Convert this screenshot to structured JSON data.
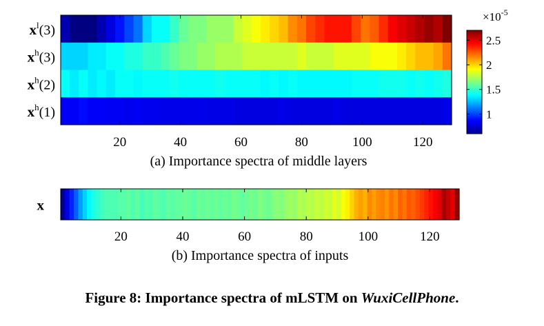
{
  "chart_data": [
    {
      "type": "heatmap",
      "subcaption": "(a)  Importance spectra of middle layers",
      "rows": [
        {
          "label_main": "x",
          "label_sup": "l",
          "label_arg": "(3)",
          "values": [
            0.7,
            0.6,
            0.55,
            0.6,
            0.7,
            0.8,
            0.9,
            1.0,
            1.1,
            1.3,
            1.4,
            1.4,
            1.5,
            1.6,
            1.65,
            1.65,
            1.7,
            1.7,
            1.7,
            1.8,
            1.85,
            1.9,
            1.95,
            2.0,
            2.05,
            2.15,
            2.2,
            2.3,
            2.35,
            2.4,
            2.4,
            2.4,
            2.3,
            2.2,
            2.25,
            2.35,
            2.45,
            2.5,
            2.55,
            2.6,
            2.65,
            2.6,
            2.7
          ]
        },
        {
          "label_main": "x",
          "label_sup": "h",
          "label_arg": "(3)",
          "values": [
            1.3,
            1.3,
            1.3,
            1.35,
            1.35,
            1.4,
            1.4,
            1.45,
            1.45,
            1.5,
            1.5,
            1.55,
            1.6,
            1.65,
            1.65,
            1.7,
            1.7,
            1.75,
            1.75,
            1.75,
            1.8,
            1.8,
            1.8,
            1.8,
            1.8,
            1.8,
            1.85,
            1.8,
            1.8,
            1.8,
            1.85,
            1.85,
            1.85,
            1.85,
            1.9,
            1.9,
            1.9,
            1.95,
            2.0,
            2.05,
            2.05,
            2.1,
            2.2
          ]
        },
        {
          "label_main": "x",
          "label_sup": "h",
          "label_arg": "(2)",
          "values": [
            1.4,
            1.35,
            1.4,
            1.35,
            1.38,
            1.35,
            1.4,
            1.4,
            1.38,
            1.4,
            1.4,
            1.4,
            1.42,
            1.4,
            1.4,
            1.4,
            1.4,
            1.42,
            1.4,
            1.4,
            1.4,
            1.4,
            1.38,
            1.4,
            1.38,
            1.4,
            1.38,
            1.38,
            1.38,
            1.38,
            1.38,
            1.38,
            1.4,
            1.4,
            1.4,
            1.42,
            1.42,
            1.42,
            1.4,
            1.42,
            1.4,
            1.42,
            1.45
          ]
        },
        {
          "label_main": "x",
          "label_sup": "h",
          "label_arg": "(1)",
          "values": [
            0.85,
            0.85,
            0.88,
            0.85,
            0.85,
            0.84,
            0.84,
            0.83,
            0.84,
            0.83,
            0.83,
            0.82,
            0.82,
            0.82,
            0.82,
            0.82,
            0.81,
            0.81,
            0.81,
            0.8,
            0.8,
            0.8,
            0.8,
            0.8,
            0.81,
            0.8,
            0.8,
            0.8,
            0.8,
            0.8,
            0.81,
            0.8,
            0.8,
            0.8,
            0.8,
            0.8,
            0.8,
            0.8,
            0.8,
            0.8,
            0.8,
            0.8,
            0.82
          ]
        }
      ],
      "x_ticks": [
        20,
        40,
        60,
        80,
        100,
        120
      ],
      "xlim": [
        0.5,
        129.5
      ],
      "colorbar": {
        "multiplier": "×10",
        "exponent": "-5",
        "ticks": [
          1,
          1.5,
          2,
          2.5
        ],
        "tick_labels": [
          "1",
          "1.5",
          "2",
          "2.5"
        ],
        "range": [
          0.6,
          2.7
        ],
        "colormap": "jet"
      }
    },
    {
      "type": "heatmap",
      "subcaption": "(b) Importance spectra of inputs",
      "rows": [
        {
          "label_main": "x",
          "label_sup": "",
          "label_arg": "",
          "values": [
            0.02,
            0.1,
            0.16,
            0.22,
            0.28,
            0.33,
            0.37,
            0.4,
            0.42,
            0.44,
            0.45,
            0.45,
            0.45,
            0.46,
            0.46,
            0.47,
            0.45,
            0.47,
            0.44,
            0.46,
            0.45,
            0.47,
            0.46,
            0.45,
            0.47,
            0.46,
            0.47,
            0.47,
            0.48,
            0.47,
            0.46,
            0.48,
            0.47,
            0.48,
            0.47,
            0.48,
            0.47,
            0.48,
            0.47,
            0.49,
            0.48,
            0.47,
            0.48,
            0.49,
            0.48,
            0.5,
            0.49,
            0.48,
            0.5,
            0.51,
            0.5,
            0.52,
            0.53,
            0.52,
            0.55,
            0.54,
            0.56,
            0.55,
            0.57,
            0.56,
            0.58,
            0.57,
            0.6,
            0.58,
            0.62,
            0.64,
            0.67,
            0.7,
            0.72,
            0.7,
            0.74,
            0.72,
            0.74,
            0.75,
            0.73,
            0.76,
            0.74,
            0.78,
            0.76,
            0.79,
            0.78,
            0.8,
            0.82,
            0.84,
            0.86,
            0.88,
            0.9,
            0.96,
            0.93,
            0.9,
            0.98
          ]
        }
      ],
      "x_ticks": [
        20,
        40,
        60,
        80,
        100,
        120
      ],
      "xlim": [
        0.5,
        129.5
      ],
      "colormap": "jet"
    }
  ],
  "figure_caption": {
    "prefix": "Figure 8: Importance spectra of mLSTM on ",
    "dataset": "WuxiCellPhone",
    "suffix": "."
  }
}
